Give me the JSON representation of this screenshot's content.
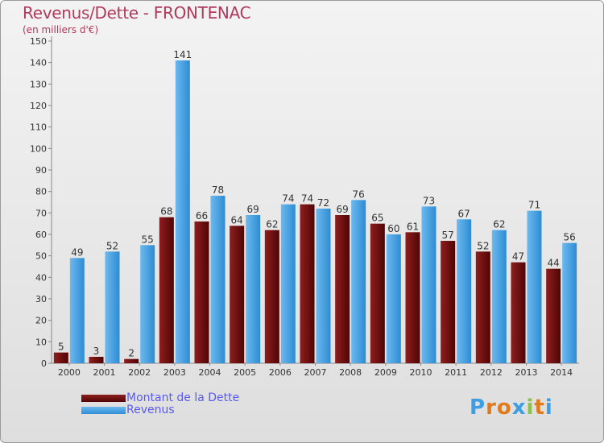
{
  "header": {
    "title": "Revenus/Dette - FRONTENAC",
    "subtitle": "(en milliers d'€)"
  },
  "colors": {
    "debt": "#6e1010",
    "revenue": "#3d9ee3",
    "title": "#b03a5e",
    "legend_text": "#5a5af0"
  },
  "legend": {
    "items": [
      {
        "label": "Montant de la Dette",
        "color": "#6e1010"
      },
      {
        "label": "Revenus",
        "color": "#3d9ee3"
      }
    ]
  },
  "logo": {
    "text": "Proxiti",
    "letter_colors": [
      "#3d9ee3",
      "#e07a1b",
      "#e07a1b",
      "#3d9ee3",
      "#8bc34a",
      "#e07a1b",
      "#3d9ee3"
    ]
  },
  "chart_data": {
    "type": "bar",
    "categories": [
      "2000",
      "2001",
      "2002",
      "2003",
      "2004",
      "2005",
      "2006",
      "2007",
      "2008",
      "2009",
      "2010",
      "2011",
      "2012",
      "2013",
      "2014"
    ],
    "series": [
      {
        "name": "Montant de la Dette",
        "color": "#6e1010",
        "values": [
          5,
          3,
          2,
          68,
          66,
          64,
          62,
          74,
          69,
          65,
          61,
          57,
          52,
          47,
          44
        ]
      },
      {
        "name": "Revenus",
        "color": "#3d9ee3",
        "values": [
          49,
          52,
          55,
          141,
          78,
          69,
          74,
          72,
          76,
          60,
          73,
          67,
          62,
          71,
          56
        ]
      }
    ],
    "ylim": [
      0,
      150
    ],
    "ytick_step": 10,
    "xlabel": "",
    "ylabel": "",
    "grid": false,
    "legend_position": "bottom-left"
  }
}
